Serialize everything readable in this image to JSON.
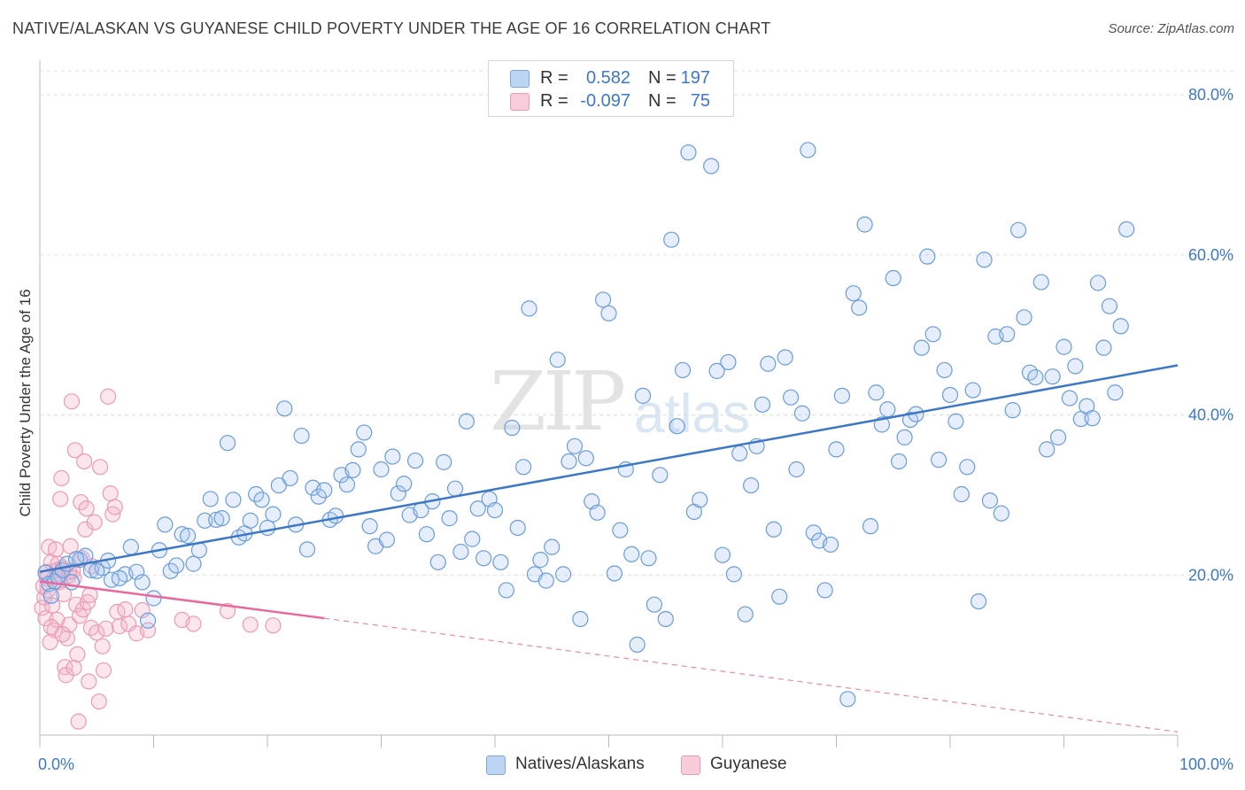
{
  "header": {
    "title": "NATIVE/ALASKAN VS GUYANESE CHILD POVERTY UNDER THE AGE OF 16 CORRELATION CHART",
    "source": "Source: ZipAtlas.com"
  },
  "legend": {
    "rows": [
      {
        "r_label": "R =",
        "r_value": "0.582",
        "n_label": "N =",
        "n_value": "197",
        "color": "#a9c8f0"
      },
      {
        "r_label": "R =",
        "r_value": "-0.097",
        "n_label": "N =",
        "n_value": "75",
        "color": "#f4b6c8"
      }
    ]
  },
  "watermark": {
    "zip": "ZIP",
    "atlas": "atlas"
  },
  "bottom_legend": {
    "series1": "Natives/Alaskans",
    "series2": "Guyanese"
  },
  "colors": {
    "blue": "#3c78c8",
    "blue_fill": "#a9c8f0",
    "pink": "#e8699a",
    "pink_fill": "#f4b6c8",
    "grid": "#dddddd"
  },
  "chart_data": {
    "type": "scatter",
    "title": "NATIVE/ALASKAN VS GUYANESE CHILD POVERTY UNDER THE AGE OF 16 CORRELATION CHART",
    "xlabel": "",
    "ylabel": "Child Poverty Under the Age of 16",
    "xlim": [
      0,
      100
    ],
    "ylim": [
      0,
      83
    ],
    "x_tick_labels": [
      "0.0%",
      "100.0%"
    ],
    "y_ticks": [
      20,
      40,
      60,
      80
    ],
    "y_tick_labels": [
      "20.0%",
      "40.0%",
      "60.0%",
      "80.0%"
    ],
    "grid": true,
    "legend_position": "top-center",
    "series": [
      {
        "name": "Natives/Alaskans",
        "color": "#3c78c8",
        "R": 0.582,
        "N": 197,
        "trend": {
          "x": [
            0,
            100
          ],
          "y": [
            20.4,
            46.2
          ]
        },
        "points": [
          [
            0.5,
            20.3
          ],
          [
            0.8,
            18.9
          ],
          [
            1.0,
            17.4
          ],
          [
            1.3,
            19.2
          ],
          [
            1.6,
            19.8
          ],
          [
            2.0,
            20.6
          ],
          [
            2.4,
            21.4
          ],
          [
            2.8,
            19.1
          ],
          [
            3.5,
            21.9
          ],
          [
            4.0,
            22.4
          ],
          [
            4.5,
            20.6
          ],
          [
            5.5,
            20.9
          ],
          [
            6.0,
            21.8
          ],
          [
            6.3,
            19.4
          ],
          [
            7.5,
            20.1
          ],
          [
            8.0,
            23.5
          ],
          [
            8.5,
            20.4
          ],
          [
            9.0,
            19.1
          ],
          [
            9.5,
            14.3
          ],
          [
            10.0,
            17.1
          ],
          [
            10.5,
            23.1
          ],
          [
            11.0,
            26.3
          ],
          [
            11.5,
            20.5
          ],
          [
            12.0,
            21.2
          ],
          [
            12.5,
            25.1
          ],
          [
            13.0,
            24.9
          ],
          [
            13.5,
            21.4
          ],
          [
            14.0,
            23.1
          ],
          [
            14.5,
            26.8
          ],
          [
            15.0,
            29.5
          ],
          [
            15.5,
            26.9
          ],
          [
            16.0,
            27.1
          ],
          [
            16.5,
            36.5
          ],
          [
            17.0,
            29.4
          ],
          [
            17.5,
            24.7
          ],
          [
            18.0,
            25.2
          ],
          [
            18.5,
            26.8
          ],
          [
            19.0,
            30.1
          ],
          [
            19.5,
            29.4
          ],
          [
            20.0,
            25.9
          ],
          [
            20.5,
            27.6
          ],
          [
            21.0,
            31.2
          ],
          [
            21.5,
            40.8
          ],
          [
            22.0,
            32.1
          ],
          [
            22.5,
            26.3
          ],
          [
            23.0,
            37.4
          ],
          [
            23.5,
            23.2
          ],
          [
            24.0,
            30.9
          ],
          [
            24.5,
            29.8
          ],
          [
            25.0,
            30.6
          ],
          [
            25.5,
            26.9
          ],
          [
            26.0,
            27.4
          ],
          [
            26.5,
            32.5
          ],
          [
            27.0,
            31.3
          ],
          [
            27.5,
            33.1
          ],
          [
            28.0,
            35.7
          ],
          [
            28.5,
            37.8
          ],
          [
            29.0,
            26.1
          ],
          [
            29.5,
            23.6
          ],
          [
            30.0,
            33.2
          ],
          [
            30.5,
            24.4
          ],
          [
            31.0,
            34.8
          ],
          [
            31.5,
            30.2
          ],
          [
            32.0,
            31.4
          ],
          [
            32.5,
            27.5
          ],
          [
            33.0,
            34.3
          ],
          [
            33.5,
            28.1
          ],
          [
            34.0,
            25.1
          ],
          [
            34.5,
            29.2
          ],
          [
            35.0,
            21.6
          ],
          [
            35.5,
            34.1
          ],
          [
            36.0,
            27.1
          ],
          [
            36.5,
            30.8
          ],
          [
            37.0,
            22.9
          ],
          [
            37.5,
            39.2
          ],
          [
            38.0,
            24.5
          ],
          [
            38.5,
            28.3
          ],
          [
            39.0,
            22.1
          ],
          [
            39.5,
            29.5
          ],
          [
            40.0,
            28.1
          ],
          [
            40.5,
            21.6
          ],
          [
            41.0,
            18.1
          ],
          [
            41.5,
            38.4
          ],
          [
            42.0,
            25.9
          ],
          [
            42.5,
            33.5
          ],
          [
            43.0,
            53.3
          ],
          [
            43.5,
            20.1
          ],
          [
            44.0,
            21.9
          ],
          [
            44.5,
            19.3
          ],
          [
            45.0,
            23.5
          ],
          [
            45.5,
            46.9
          ],
          [
            46.0,
            20.1
          ],
          [
            46.5,
            34.2
          ],
          [
            47.0,
            36.1
          ],
          [
            47.5,
            14.5
          ],
          [
            48.0,
            34.6
          ],
          [
            48.5,
            29.2
          ],
          [
            49.0,
            27.8
          ],
          [
            49.5,
            54.4
          ],
          [
            50.0,
            52.7
          ],
          [
            50.5,
            20.2
          ],
          [
            51.0,
            25.6
          ],
          [
            51.5,
            33.2
          ],
          [
            52.0,
            22.6
          ],
          [
            52.5,
            11.3
          ],
          [
            53.0,
            42.4
          ],
          [
            53.5,
            22.1
          ],
          [
            54.0,
            16.3
          ],
          [
            54.5,
            32.5
          ],
          [
            55.0,
            14.5
          ],
          [
            55.5,
            61.9
          ],
          [
            56.0,
            38.6
          ],
          [
            56.5,
            45.6
          ],
          [
            57.0,
            72.8
          ],
          [
            57.5,
            27.9
          ],
          [
            58.0,
            29.4
          ],
          [
            59.0,
            71.1
          ],
          [
            59.5,
            45.5
          ],
          [
            60.0,
            22.5
          ],
          [
            60.5,
            46.6
          ],
          [
            61.0,
            20.1
          ],
          [
            61.5,
            35.2
          ],
          [
            62.0,
            15.1
          ],
          [
            62.5,
            31.2
          ],
          [
            63.0,
            36.1
          ],
          [
            63.5,
            41.3
          ],
          [
            64.0,
            46.4
          ],
          [
            64.5,
            25.7
          ],
          [
            65.0,
            17.3
          ],
          [
            65.5,
            47.2
          ],
          [
            66.0,
            42.2
          ],
          [
            66.5,
            33.2
          ],
          [
            67.0,
            40.2
          ],
          [
            67.5,
            73.1
          ],
          [
            68.0,
            25.3
          ],
          [
            68.5,
            24.3
          ],
          [
            69.0,
            18.1
          ],
          [
            69.5,
            23.8
          ],
          [
            70.0,
            35.7
          ],
          [
            70.5,
            42.4
          ],
          [
            71.0,
            4.5
          ],
          [
            71.5,
            55.2
          ],
          [
            72.0,
            53.4
          ],
          [
            72.5,
            63.8
          ],
          [
            73.0,
            26.1
          ],
          [
            73.5,
            42.8
          ],
          [
            74.0,
            38.8
          ],
          [
            74.5,
            40.7
          ],
          [
            75.0,
            57.1
          ],
          [
            75.5,
            34.2
          ],
          [
            76.0,
            37.2
          ],
          [
            76.5,
            39.4
          ],
          [
            77.0,
            40.1
          ],
          [
            77.5,
            48.4
          ],
          [
            78.0,
            59.8
          ],
          [
            78.5,
            50.1
          ],
          [
            79.0,
            34.4
          ],
          [
            79.5,
            45.6
          ],
          [
            80.0,
            42.5
          ],
          [
            80.5,
            39.2
          ],
          [
            81.0,
            30.1
          ],
          [
            81.5,
            33.5
          ],
          [
            82.0,
            43.1
          ],
          [
            82.5,
            16.7
          ],
          [
            83.0,
            59.4
          ],
          [
            83.5,
            29.3
          ],
          [
            84.0,
            49.8
          ],
          [
            84.5,
            27.7
          ],
          [
            85.0,
            50.1
          ],
          [
            85.5,
            40.6
          ],
          [
            86.0,
            63.1
          ],
          [
            86.5,
            52.2
          ],
          [
            87.0,
            45.3
          ],
          [
            87.5,
            44.7
          ],
          [
            88.0,
            56.6
          ],
          [
            88.5,
            35.7
          ],
          [
            89.0,
            44.8
          ],
          [
            89.5,
            37.2
          ],
          [
            90.0,
            48.5
          ],
          [
            90.5,
            42.1
          ],
          [
            91.0,
            46.1
          ],
          [
            91.5,
            39.5
          ],
          [
            92.0,
            41.1
          ],
          [
            92.5,
            39.6
          ],
          [
            93.0,
            56.5
          ],
          [
            93.5,
            48.4
          ],
          [
            94.0,
            53.6
          ],
          [
            94.5,
            42.8
          ],
          [
            95.0,
            51.1
          ],
          [
            95.5,
            63.2
          ],
          [
            3.2,
            22.0
          ],
          [
            5.0,
            20.5
          ],
          [
            7.0,
            19.6
          ]
        ]
      },
      {
        "name": "Guyanese",
        "color": "#e8699a",
        "R": -0.097,
        "N": 75,
        "trend": {
          "x": [
            0,
            25
          ],
          "y": [
            19.2,
            14.6
          ]
        },
        "trend_extension": {
          "x": [
            25,
            100
          ],
          "y": [
            14.6,
            0.4
          ]
        },
        "points": [
          [
            0.2,
            15.9
          ],
          [
            0.4,
            17.2
          ],
          [
            0.5,
            14.6
          ],
          [
            0.6,
            20.4
          ],
          [
            0.7,
            18.1
          ],
          [
            0.8,
            23.5
          ],
          [
            1.0,
            21.6
          ],
          [
            1.1,
            16.2
          ],
          [
            1.2,
            19.5
          ],
          [
            1.3,
            13.1
          ],
          [
            1.4,
            23.2
          ],
          [
            1.5,
            14.4
          ],
          [
            1.6,
            21.4
          ],
          [
            1.7,
            19.1
          ],
          [
            1.8,
            29.5
          ],
          [
            1.9,
            32.1
          ],
          [
            2.0,
            20.9
          ],
          [
            2.1,
            17.6
          ],
          [
            2.2,
            8.5
          ],
          [
            2.3,
            7.5
          ],
          [
            2.4,
            12.1
          ],
          [
            2.5,
            19.9
          ],
          [
            2.6,
            13.8
          ],
          [
            2.7,
            23.6
          ],
          [
            2.8,
            41.7
          ],
          [
            2.9,
            20.5
          ],
          [
            3.0,
            8.4
          ],
          [
            3.1,
            35.6
          ],
          [
            3.2,
            16.3
          ],
          [
            3.3,
            10.1
          ],
          [
            3.4,
            1.7
          ],
          [
            3.5,
            14.9
          ],
          [
            3.6,
            29.1
          ],
          [
            3.7,
            22.1
          ],
          [
            3.8,
            15.7
          ],
          [
            3.9,
            34.2
          ],
          [
            4.0,
            25.7
          ],
          [
            4.1,
            28.3
          ],
          [
            4.2,
            16.6
          ],
          [
            4.3,
            6.7
          ],
          [
            4.4,
            17.5
          ],
          [
            4.5,
            13.4
          ],
          [
            4.6,
            21.1
          ],
          [
            4.8,
            26.6
          ],
          [
            5.0,
            12.8
          ],
          [
            5.2,
            4.2
          ],
          [
            5.3,
            33.5
          ],
          [
            5.5,
            11.1
          ],
          [
            5.6,
            8.1
          ],
          [
            5.8,
            13.3
          ],
          [
            6.0,
            42.3
          ],
          [
            6.2,
            30.2
          ],
          [
            6.4,
            27.6
          ],
          [
            6.6,
            28.5
          ],
          [
            6.8,
            15.4
          ],
          [
            7.0,
            13.6
          ],
          [
            7.5,
            15.7
          ],
          [
            7.8,
            13.9
          ],
          [
            8.5,
            12.7
          ],
          [
            9.0,
            15.6
          ],
          [
            9.5,
            13.1
          ],
          [
            12.5,
            14.4
          ],
          [
            13.5,
            13.9
          ],
          [
            16.5,
            15.5
          ],
          [
            18.5,
            13.8
          ],
          [
            20.5,
            13.7
          ],
          [
            0.9,
            11.6
          ],
          [
            1.0,
            13.5
          ],
          [
            2.0,
            12.6
          ],
          [
            1.5,
            20.6
          ],
          [
            0.6,
            19.6
          ],
          [
            3.0,
            19.6
          ],
          [
            1.8,
            20.1
          ],
          [
            2.6,
            20.4
          ],
          [
            0.3,
            18.6
          ]
        ]
      }
    ]
  }
}
